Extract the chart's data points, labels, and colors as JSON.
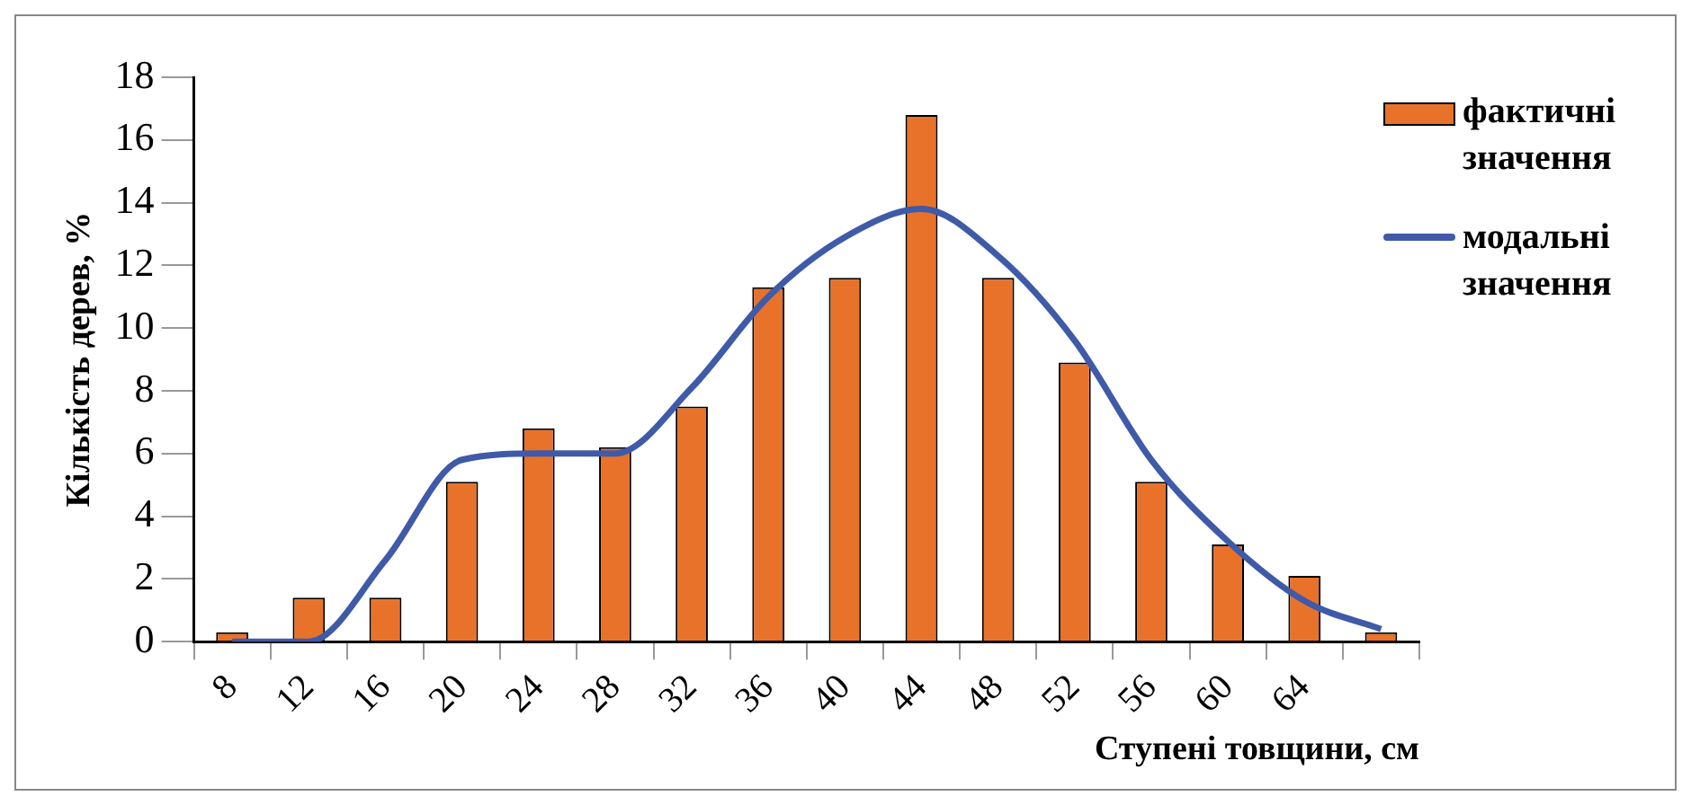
{
  "chart_data": {
    "type": "bar",
    "xlabel": "Ступені товщини, см",
    "ylabel": "Кількість дерев, %",
    "categories": [
      "8",
      "12",
      "16",
      "20",
      "24",
      "28",
      "32",
      "36",
      "40",
      "44",
      "48",
      "52",
      "56",
      "60",
      "64",
      null
    ],
    "series": [
      {
        "name": "фактичні значення",
        "color": "#e8722a",
        "values": [
          0.3,
          1.4,
          1.4,
          5.1,
          6.8,
          6.2,
          7.5,
          11.3,
          11.6,
          16.8,
          11.6,
          8.9,
          5.1,
          3.1,
          2.1,
          0.3
        ]
      },
      {
        "name": "модальні значення",
        "type": "line",
        "color": "#3f5aa8",
        "values": [
          0.0,
          0.0,
          2.6,
          5.8,
          6.0,
          6.0,
          8.1,
          11.0,
          12.9,
          13.8,
          12.3,
          9.6,
          5.8,
          3.2,
          1.3,
          0.4
        ]
      }
    ],
    "ylim": [
      0,
      18
    ],
    "yticks": [
      0,
      2,
      4,
      6,
      8,
      10,
      12,
      14,
      16,
      18
    ],
    "grid": false,
    "legend": "top right",
    "marker": "none",
    "line_style": "solid"
  }
}
